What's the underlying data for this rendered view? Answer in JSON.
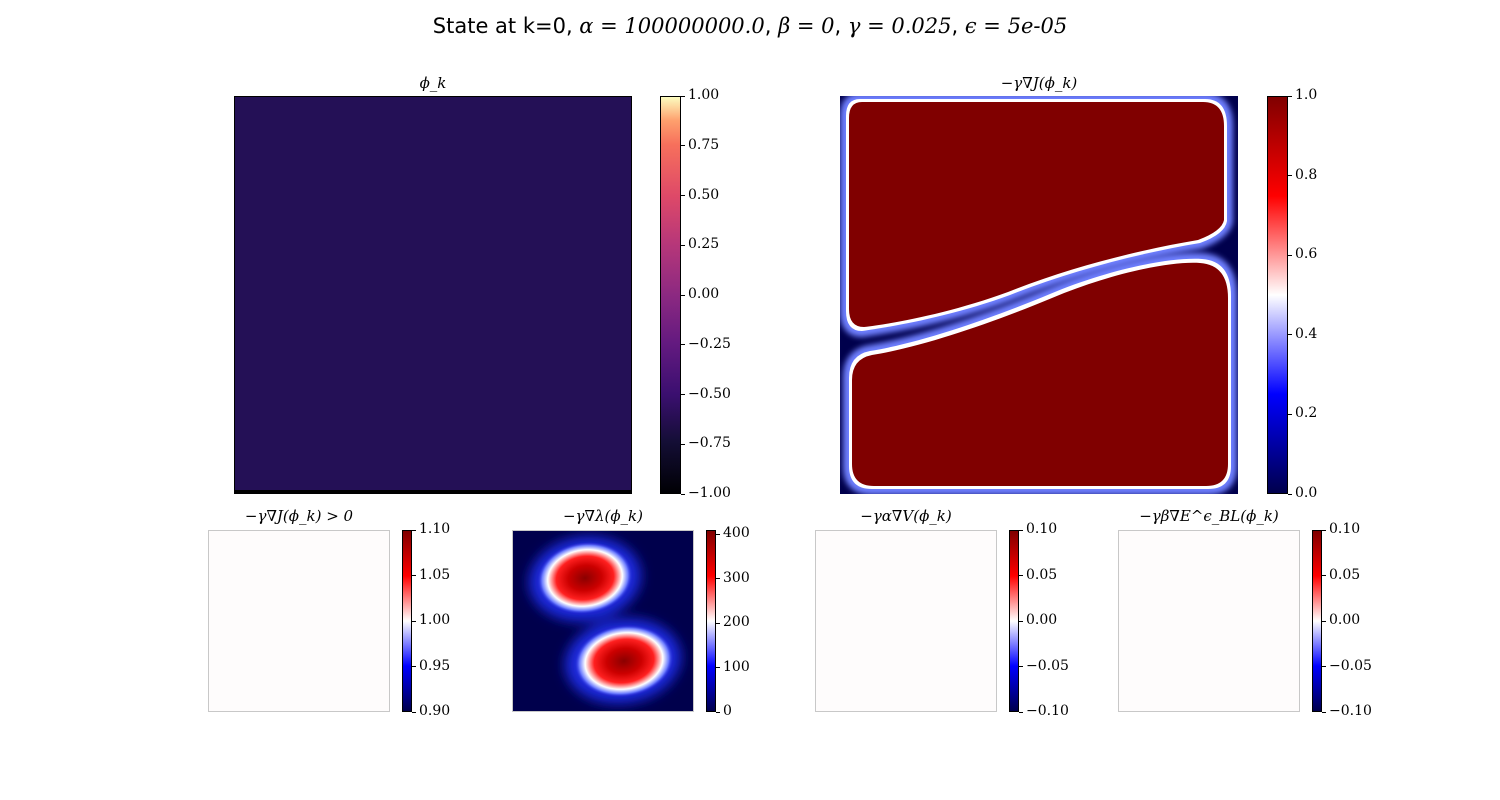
{
  "figure": {
    "title_parts": {
      "prefix": "State at k=0, ",
      "alpha": "α = 100000000.0",
      "sep1": ", ",
      "beta": "β = 0",
      "sep2": ", ",
      "gamma": "γ = 0.025",
      "sep3": ", ",
      "epsilon": "ϵ = 5e-05"
    }
  },
  "chart_data": [
    {
      "type": "heatmap",
      "title": "ϕ_k",
      "field": "uniform",
      "uniform_value": -0.6,
      "colormap": "magma",
      "colorbar_ticks": [
        "1.00",
        "0.75",
        "0.50",
        "0.25",
        "0.00",
        "−0.25",
        "−0.50",
        "−0.75",
        "−1.00"
      ],
      "vmin": -1.0,
      "vmax": 1.0,
      "colors": {
        "field": "#241056"
      }
    },
    {
      "type": "heatmap",
      "title": "−γ∇J(ϕ_k)",
      "field": "two_lobes_saturated",
      "colormap": "seismic",
      "colorbar_ticks": [
        "1.0",
        "0.8",
        "0.6",
        "0.4",
        "0.2",
        "0.0"
      ],
      "vmin": 0.0,
      "vmax": 1.0,
      "colors": {
        "high": "#800000",
        "low": "#00004c"
      }
    },
    {
      "type": "heatmap",
      "title": "−γ∇J(ϕ_k) > 0",
      "field": "uniform",
      "uniform_value": 1.0,
      "colormap": "seismic",
      "colorbar_ticks": [
        "1.10",
        "1.05",
        "1.00",
        "0.95",
        "0.90"
      ],
      "vmin": 0.9,
      "vmax": 1.1,
      "colors": {
        "field": "#fefcfc"
      }
    },
    {
      "type": "heatmap",
      "title": "−γ∇λ(ϕ_k)",
      "field": "two_blobs",
      "colormap": "seismic",
      "colorbar_ticks": [
        "400",
        "300",
        "200",
        "100",
        "0"
      ],
      "vmin": 0,
      "vmax": 410,
      "colors": {
        "high": "#8b0000",
        "low": "#00004c"
      }
    },
    {
      "type": "heatmap",
      "title": "−γα∇V(ϕ_k)",
      "field": "uniform",
      "uniform_value": 0.0,
      "colormap": "seismic",
      "colorbar_ticks": [
        "0.10",
        "0.05",
        "0.00",
        "−0.05",
        "−0.10"
      ],
      "vmin": -0.1,
      "vmax": 0.1,
      "colors": {
        "field": "#fefcfc"
      }
    },
    {
      "type": "heatmap",
      "title": "−γβ∇E^ϵ_BL(ϕ_k)",
      "field": "uniform",
      "uniform_value": 0.0,
      "colormap": "seismic",
      "colorbar_ticks": [
        "0.10",
        "0.05",
        "0.00",
        "−0.05",
        "−0.10"
      ],
      "vmin": -0.1,
      "vmax": 0.1,
      "colors": {
        "field": "#fefcfc"
      }
    }
  ]
}
